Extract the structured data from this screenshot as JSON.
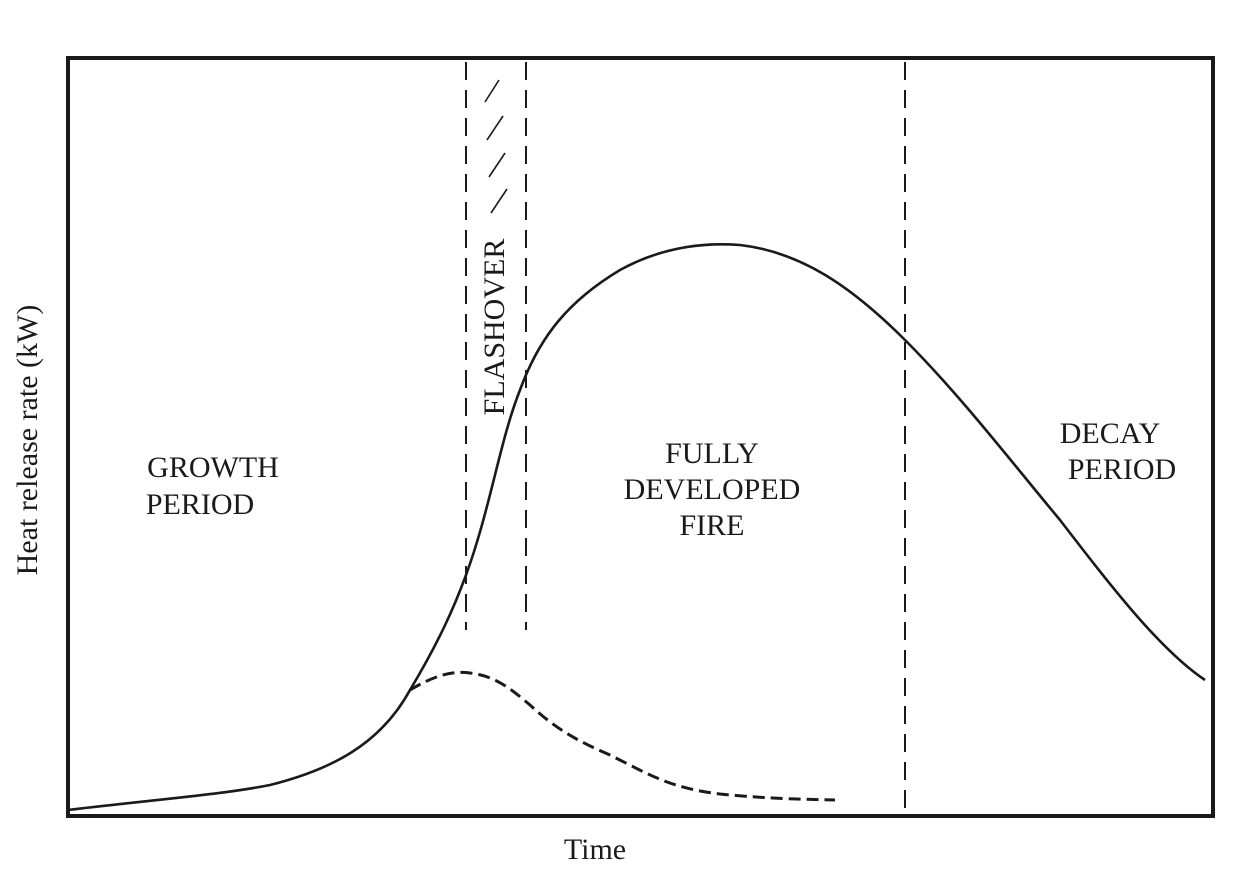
{
  "axes": {
    "y_label": "Heat release rate (kW)",
    "x_label": "Time"
  },
  "regions": [
    {
      "lines": [
        "GROWTH",
        "PERIOD"
      ]
    },
    {
      "label": "FLASHOVER"
    },
    {
      "lines": [
        "FULLY",
        "DEVELOPED",
        "FIRE"
      ]
    },
    {
      "lines": [
        "DECAY",
        "PERIOD"
      ]
    }
  ]
}
